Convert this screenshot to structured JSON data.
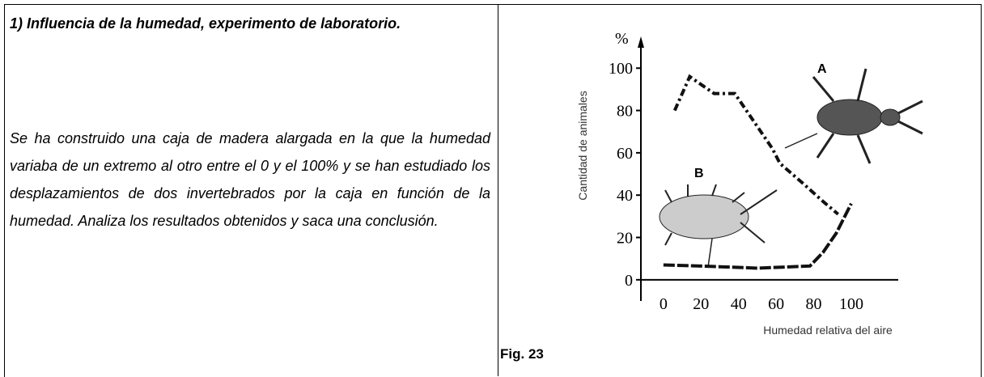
{
  "text": {
    "title": "1) Influencia de la humedad, experimento de laboratorio.",
    "paragraph": "Se ha construido una caja de madera alargada  en la que la humedad variaba de un extremo al otro  entre el 0 y el 100% y se han estudiado los desplazamientos de dos invertebrados por la caja en función de la humedad.  Analiza los resultados obtenidos y saca una conclusión.",
    "caption": "Fig. 23"
  },
  "chart_data": {
    "type": "line",
    "y_unit": "%",
    "ylabel": "Cantidad de animales",
    "xlabel": "Humedad relativa del aire",
    "xlim": [
      -12,
      125
    ],
    "xticks": [
      0,
      20,
      40,
      60,
      80,
      100
    ],
    "ylim": [
      -10,
      115
    ],
    "yticks": [
      0,
      20,
      40,
      60,
      80,
      100
    ],
    "series": [
      {
        "name": "A",
        "color": "#111111",
        "x": [
          6,
          14,
          27,
          38,
          48,
          58,
          62,
          75,
          85,
          93
        ],
        "values": [
          80,
          96,
          88,
          88,
          75,
          62,
          55,
          45,
          37,
          31
        ]
      },
      {
        "name": "B",
        "color": "#111111",
        "x": [
          0,
          20,
          50,
          78,
          85,
          92,
          100
        ],
        "values": [
          7,
          6.5,
          5.5,
          6.5,
          13,
          22,
          36
        ]
      }
    ]
  }
}
